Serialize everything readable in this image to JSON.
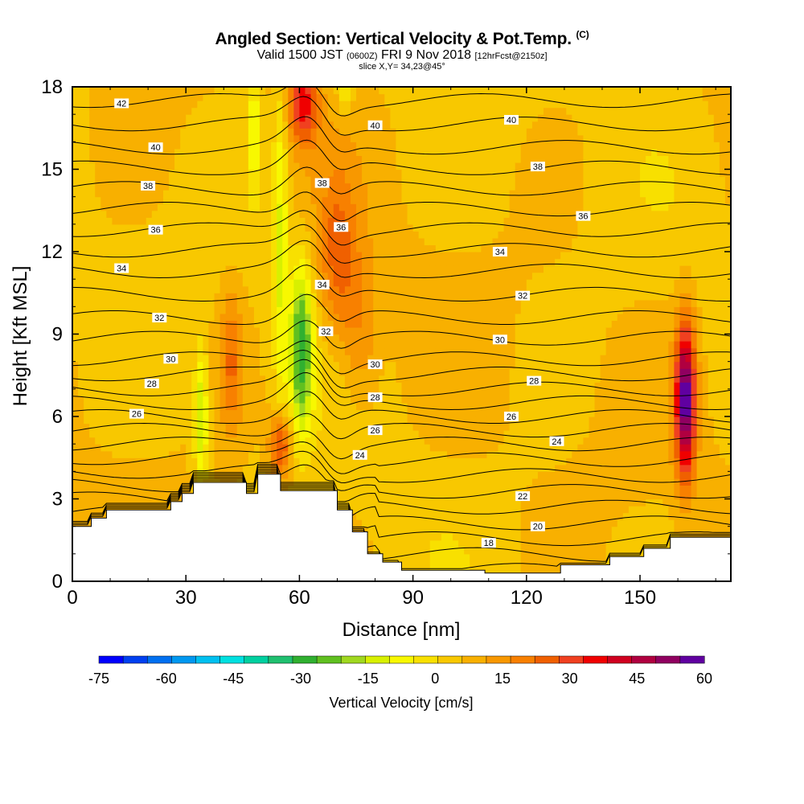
{
  "header": {
    "title": "Angled Section: Vertical Velocity & Pot.Temp.",
    "title_suffix": "(C)",
    "valid_prefix": "Valid 1500 JST",
    "valid_utc": "(0600Z)",
    "valid_date": "FRI 9 Nov 2018",
    "forecast": "[12hrFcst@2150z]",
    "slice": "slice X,Y= 34,23@45°"
  },
  "chart_data": {
    "type": "heatmap",
    "xlabel": "Distance [nm]",
    "ylabel": "Height [Kft MSL]",
    "xlim": [
      0,
      174
    ],
    "ylim": [
      0,
      18
    ],
    "x_ticks": [
      0,
      30,
      60,
      90,
      120,
      150
    ],
    "y_ticks": [
      0,
      3,
      6,
      9,
      12,
      15,
      18
    ],
    "colorbar": {
      "label": "Vertical Velocity [cm/s]",
      "range": [
        -75,
        60
      ],
      "ticks": [
        -75,
        -60,
        -45,
        -30,
        -15,
        0,
        15,
        30,
        45,
        60
      ],
      "colors": [
        "#0000ff",
        "#0040f0",
        "#0070f0",
        "#0098f0",
        "#00c0f0",
        "#00e0e0",
        "#00d0a0",
        "#20c070",
        "#30b030",
        "#60c020",
        "#a0d820",
        "#d8f000",
        "#f8f800",
        "#f8e000",
        "#f8c800",
        "#f8b000",
        "#f89800",
        "#f88000",
        "#f06000",
        "#f04020",
        "#f00000",
        "#d00020",
        "#b00040",
        "#900060",
        "#6000a0"
      ]
    },
    "terrain_profile": [
      [
        0,
        2.0
      ],
      [
        5,
        2.0
      ],
      [
        5,
        2.3
      ],
      [
        9,
        2.3
      ],
      [
        9,
        2.6
      ],
      [
        26,
        2.6
      ],
      [
        26,
        2.9
      ],
      [
        29,
        2.9
      ],
      [
        29,
        3.2
      ],
      [
        32,
        3.2
      ],
      [
        32,
        3.6
      ],
      [
        46,
        3.6
      ],
      [
        46,
        3.2
      ],
      [
        49,
        3.2
      ],
      [
        49,
        3.9
      ],
      [
        55,
        3.9
      ],
      [
        55,
        3.3
      ],
      [
        70,
        3.3
      ],
      [
        70,
        2.6
      ],
      [
        74,
        2.6
      ],
      [
        74,
        1.8
      ],
      [
        78,
        1.8
      ],
      [
        78,
        1.0
      ],
      [
        82,
        1.0
      ],
      [
        82,
        0.7
      ],
      [
        87,
        0.7
      ],
      [
        87,
        0.4
      ],
      [
        109,
        0.4
      ],
      [
        109,
        0.3
      ],
      [
        129,
        0.3
      ],
      [
        129,
        0.6
      ],
      [
        142,
        0.6
      ],
      [
        142,
        0.9
      ],
      [
        151,
        0.9
      ],
      [
        151,
        1.2
      ],
      [
        158,
        1.2
      ],
      [
        158,
        1.6
      ],
      [
        174,
        1.6
      ]
    ],
    "updrafts": [
      {
        "x": 162,
        "y": 6.6,
        "amplitude": 55,
        "width_nm": 2.6,
        "height_kft": 2.8
      },
      {
        "x": 61,
        "y": 17.4,
        "amplitude": 30,
        "width_nm": 4,
        "height_kft": 1.5
      },
      {
        "x": 70,
        "y": 11.8,
        "amplitude": 18,
        "width_nm": 5,
        "height_kft": 3
      },
      {
        "x": 55,
        "y": 4.9,
        "amplitude": 28,
        "width_nm": 2.8,
        "height_kft": 1.2
      },
      {
        "x": 42,
        "y": 8.0,
        "amplitude": 17,
        "width_nm": 3,
        "height_kft": 2.5
      },
      {
        "x": 76,
        "y": 9.0,
        "amplitude": 12,
        "width_nm": 5,
        "height_kft": 3
      }
    ],
    "downdrafts": [
      {
        "x": 60.5,
        "y": 8.5,
        "amplitude": -36,
        "width_nm": 3,
        "height_kft": 3
      },
      {
        "x": 55,
        "y": 12.5,
        "amplitude": -18,
        "width_nm": 2,
        "height_kft": 6
      },
      {
        "x": 34,
        "y": 6.0,
        "amplitude": -22,
        "width_nm": 1.8,
        "height_kft": 2.5
      },
      {
        "x": 48,
        "y": 16.5,
        "amplitude": -16,
        "width_nm": 1.6,
        "height_kft": 2.5
      },
      {
        "x": 72,
        "y": 17.8,
        "amplitude": -10,
        "width_nm": 2,
        "height_kft": 1
      }
    ],
    "isentropes": {
      "interval": 1,
      "min": 16,
      "max": 42,
      "levels_at_x0": [
        {
          "theta": 42,
          "y": 17.5
        },
        {
          "theta": 40,
          "y": 15.8
        },
        {
          "theta": 38,
          "y": 14.3
        },
        {
          "theta": 36,
          "y": 12.8
        },
        {
          "theta": 34,
          "y": 11.3
        },
        {
          "theta": 32,
          "y": 9.6
        },
        {
          "theta": 30,
          "y": 8.1
        },
        {
          "theta": 28,
          "y": 7.0
        },
        {
          "theta": 26,
          "y": 6.0
        }
      ],
      "labels": [
        {
          "theta": "42",
          "x": 13,
          "y": 17.4
        },
        {
          "theta": "40",
          "x": 22,
          "y": 15.8
        },
        {
          "theta": "38",
          "x": 20,
          "y": 14.4
        },
        {
          "theta": "36",
          "x": 22,
          "y": 12.8
        },
        {
          "theta": "34",
          "x": 13,
          "y": 11.4
        },
        {
          "theta": "32",
          "x": 23,
          "y": 9.6
        },
        {
          "theta": "30",
          "x": 26,
          "y": 8.1
        },
        {
          "theta": "28",
          "x": 21,
          "y": 7.2
        },
        {
          "theta": "26",
          "x": 17,
          "y": 6.1
        },
        {
          "theta": "40",
          "x": 80,
          "y": 16.6
        },
        {
          "theta": "38",
          "x": 66,
          "y": 14.5
        },
        {
          "theta": "36",
          "x": 71,
          "y": 12.9
        },
        {
          "theta": "34",
          "x": 66,
          "y": 10.8
        },
        {
          "theta": "32",
          "x": 67,
          "y": 9.1
        },
        {
          "theta": "30",
          "x": 80,
          "y": 7.9
        },
        {
          "theta": "28",
          "x": 80,
          "y": 6.7
        },
        {
          "theta": "26",
          "x": 80,
          "y": 5.5
        },
        {
          "theta": "24",
          "x": 76,
          "y": 4.6
        },
        {
          "theta": "40",
          "x": 116,
          "y": 16.8
        },
        {
          "theta": "38",
          "x": 123,
          "y": 15.1
        },
        {
          "theta": "36",
          "x": 135,
          "y": 13.3
        },
        {
          "theta": "34",
          "x": 113,
          "y": 12.0
        },
        {
          "theta": "32",
          "x": 119,
          "y": 10.4
        },
        {
          "theta": "30",
          "x": 113,
          "y": 8.8
        },
        {
          "theta": "28",
          "x": 122,
          "y": 7.3
        },
        {
          "theta": "26",
          "x": 116,
          "y": 6.0
        },
        {
          "theta": "24",
          "x": 128,
          "y": 5.1
        },
        {
          "theta": "22",
          "x": 119,
          "y": 3.1
        },
        {
          "theta": "20",
          "x": 123,
          "y": 2.0
        },
        {
          "theta": "18",
          "x": 110,
          "y": 1.4
        }
      ]
    }
  }
}
